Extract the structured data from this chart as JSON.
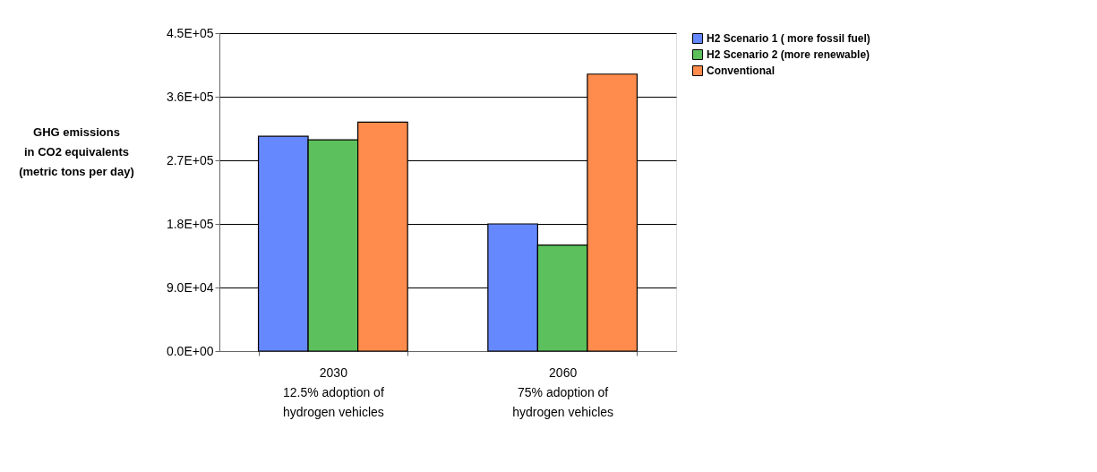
{
  "chart_data": {
    "type": "bar",
    "ylabel": "GHG emissions\nin CO2 equivalents\n(metric tons per day)",
    "categories": [
      "2030\n\n12.5% adoption of\nhydrogen vehicles",
      "2060\n\n75% adoption of\nhydrogen vehicles"
    ],
    "series": [
      {
        "name": "H2 Scenario 1 ( more fossil fuel)",
        "color": "#6688ff",
        "values": [
          304000,
          180000
        ]
      },
      {
        "name": "H2 Scenario 2 (more renewable)",
        "color": "#5cc05c",
        "values": [
          299000,
          150000
        ]
      },
      {
        "name": "Conventional",
        "color": "#ff8c4c",
        "values": [
          324000,
          392000
        ]
      }
    ],
    "ylim": [
      0,
      450000
    ],
    "yticks": [
      {
        "value": 0,
        "label": "0.0E+00"
      },
      {
        "value": 90000,
        "label": "9.0E+04"
      },
      {
        "value": 180000,
        "label": "1.8E+05"
      },
      {
        "value": 270000,
        "label": "2.7E+05"
      },
      {
        "value": 360000,
        "label": "3.6E+05"
      },
      {
        "value": 450000,
        "label": "4.5E+05"
      }
    ],
    "grid": "y",
    "legend": "right"
  }
}
